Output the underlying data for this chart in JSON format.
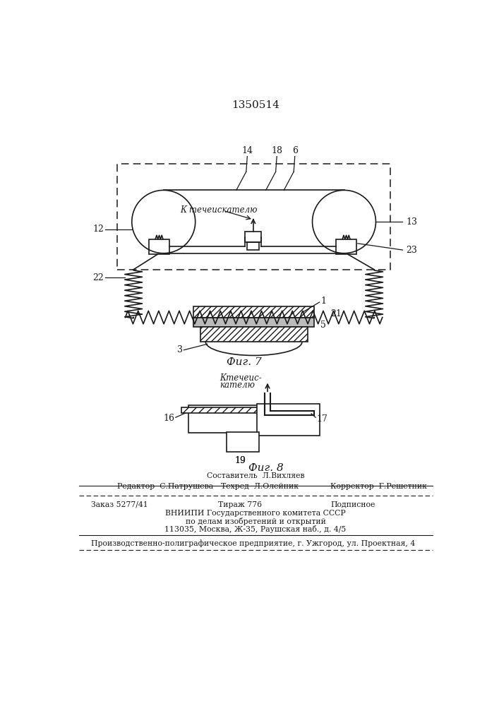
{
  "patent_number": "1350514",
  "bg_color": "#ffffff",
  "line_color": "#1a1a1a",
  "fig7_label": "Фиг. 7",
  "fig8_label": "Фиг. 8",
  "k_techeiskatelyu7": "К течеискателю",
  "k_techeiskatelyu8_l1": "Ктечеис-",
  "k_techeiskatelyu8_l2": "кателю",
  "footer_sestavitel": "Составитель  Л.Вихляев",
  "footer_redaktor": "Редактор  С.Патрушева",
  "footer_tekhred": "Техред  Л.Олейник",
  "footer_korrektor": "Корректор  Г.Решетник",
  "footer_zakaz": "Заказ 5277/41",
  "footer_tirazh": "Тираж 776",
  "footer_podpisnoe": "Подписное",
  "footer_vniip1": "ВНИИПИ Государственного комитета СССР",
  "footer_vniip2": "по делам изобретений и открытий",
  "footer_vniip3": "113035, Москва, Ж-35, Раушская наб., д. 4/5",
  "footer_last": "Производственно-полиграфическое предприятие, г. Ужгород, ул. Проектная, 4"
}
